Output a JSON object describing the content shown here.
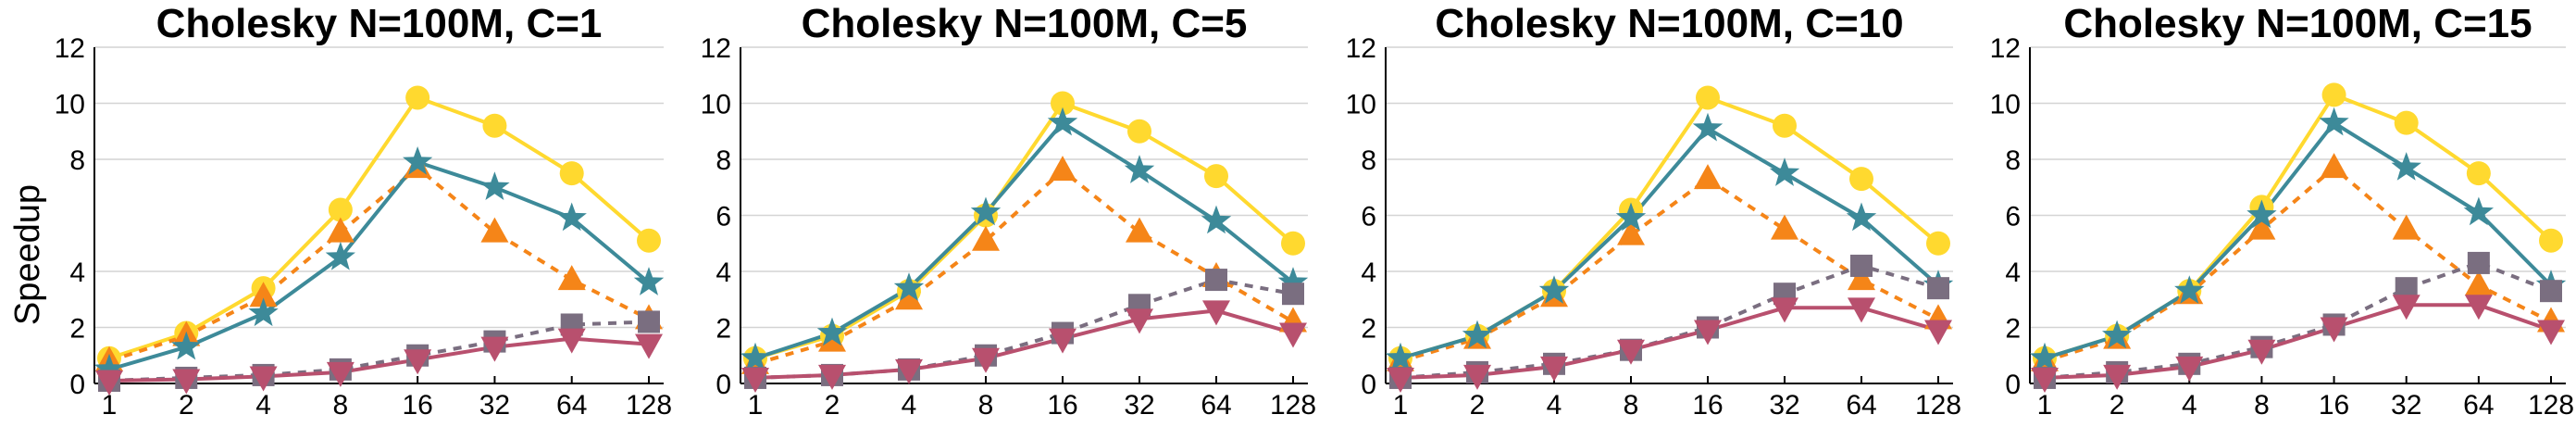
{
  "figure": {
    "ylabel": "Speedup"
  },
  "chart_data": [
    {
      "type": "line",
      "title": "Cholesky N=100M, C=1",
      "xlabel": "",
      "ylabel": "Speedup",
      "x": [
        "1",
        "2",
        "4",
        "8",
        "16",
        "32",
        "64",
        "128"
      ],
      "ylim": [
        0,
        12
      ],
      "yticks": [
        "0",
        "2",
        "4",
        "8",
        "10",
        "12"
      ],
      "grid": true,
      "legend": "none",
      "series": [
        {
          "color": "#FFD92F",
          "dashed": false,
          "marker": "circle",
          "values": [
            0.9,
            1.8,
            3.4,
            6.2,
            10.2,
            9.2,
            7.5,
            5.1
          ]
        },
        {
          "color": "#F58518",
          "dashed": true,
          "marker": "triangle-up",
          "values": [
            0.8,
            1.7,
            3.1,
            5.4,
            7.7,
            5.4,
            3.7,
            2.3
          ]
        },
        {
          "color": "#3D8A99",
          "dashed": false,
          "marker": "star",
          "values": [
            0.5,
            1.3,
            2.5,
            4.5,
            7.9,
            7.0,
            5.9,
            3.6
          ]
        },
        {
          "color": "#7A6E80",
          "dashed": true,
          "marker": "square",
          "values": [
            0.1,
            0.2,
            0.3,
            0.5,
            1.0,
            1.5,
            2.1,
            2.2
          ]
        },
        {
          "color": "#B8506E",
          "dashed": false,
          "marker": "triangle-down",
          "values": [
            0.1,
            0.15,
            0.25,
            0.4,
            0.85,
            1.3,
            1.6,
            1.4
          ]
        }
      ]
    },
    {
      "type": "line",
      "title": "Cholesky N=100M, C=5",
      "xlabel": "",
      "ylabel": "",
      "x": [
        "1",
        "2",
        "4",
        "8",
        "16",
        "32",
        "64",
        "128"
      ],
      "ylim": [
        0,
        12
      ],
      "yticks": [
        "0",
        "2",
        "4",
        "6",
        "8",
        "10",
        "12"
      ],
      "grid": true,
      "legend": "none",
      "series": [
        {
          "color": "#FFD92F",
          "dashed": false,
          "marker": "circle",
          "values": [
            0.9,
            1.7,
            3.3,
            6.0,
            10.0,
            9.0,
            7.4,
            5.0
          ]
        },
        {
          "color": "#F58518",
          "dashed": true,
          "marker": "triangle-up",
          "values": [
            0.7,
            1.5,
            3.0,
            5.1,
            7.6,
            5.4,
            3.8,
            2.2
          ]
        },
        {
          "color": "#3D8A99",
          "dashed": false,
          "marker": "star",
          "values": [
            0.9,
            1.8,
            3.4,
            6.1,
            9.3,
            7.6,
            5.8,
            3.6
          ]
        },
        {
          "color": "#7A6E80",
          "dashed": true,
          "marker": "square",
          "values": [
            0.2,
            0.3,
            0.5,
            1.0,
            1.8,
            2.8,
            3.7,
            3.2
          ]
        },
        {
          "color": "#B8506E",
          "dashed": false,
          "marker": "triangle-down",
          "values": [
            0.2,
            0.3,
            0.5,
            0.9,
            1.6,
            2.3,
            2.6,
            1.8
          ]
        }
      ]
    },
    {
      "type": "line",
      "title": "Cholesky N=100M, C=10",
      "xlabel": "",
      "ylabel": "",
      "x": [
        "1",
        "2",
        "4",
        "8",
        "16",
        "32",
        "64",
        "128"
      ],
      "ylim": [
        0,
        12
      ],
      "yticks": [
        "0",
        "2",
        "4",
        "6",
        "8",
        "10",
        "12"
      ],
      "grid": true,
      "legend": "none",
      "series": [
        {
          "color": "#FFD92F",
          "dashed": false,
          "marker": "circle",
          "values": [
            0.9,
            1.7,
            3.3,
            6.2,
            10.2,
            9.2,
            7.3,
            5.0
          ]
        },
        {
          "color": "#F58518",
          "dashed": true,
          "marker": "triangle-up",
          "values": [
            0.8,
            1.6,
            3.1,
            5.3,
            7.3,
            5.5,
            3.7,
            2.3
          ]
        },
        {
          "color": "#3D8A99",
          "dashed": false,
          "marker": "star",
          "values": [
            0.9,
            1.7,
            3.3,
            5.9,
            9.1,
            7.5,
            5.9,
            3.5
          ]
        },
        {
          "color": "#7A6E80",
          "dashed": true,
          "marker": "square",
          "values": [
            0.2,
            0.4,
            0.7,
            1.2,
            2.0,
            3.2,
            4.2,
            3.4
          ]
        },
        {
          "color": "#B8506E",
          "dashed": false,
          "marker": "triangle-down",
          "values": [
            0.2,
            0.3,
            0.6,
            1.2,
            1.9,
            2.7,
            2.7,
            1.9
          ]
        }
      ]
    },
    {
      "type": "line",
      "title": "Cholesky N=100M, C=15",
      "xlabel": "",
      "ylabel": "",
      "x": [
        "1",
        "2",
        "4",
        "8",
        "16",
        "32",
        "64",
        "128"
      ],
      "ylim": [
        0,
        12
      ],
      "yticks": [
        "0",
        "2",
        "4",
        "6",
        "8",
        "10",
        "12"
      ],
      "grid": true,
      "legend": "none",
      "series": [
        {
          "color": "#FFD92F",
          "dashed": false,
          "marker": "circle",
          "values": [
            0.9,
            1.7,
            3.3,
            6.3,
            10.3,
            9.3,
            7.5,
            5.1
          ]
        },
        {
          "color": "#F58518",
          "dashed": true,
          "marker": "triangle-up",
          "values": [
            0.8,
            1.6,
            3.2,
            5.5,
            7.7,
            5.5,
            3.5,
            2.2
          ]
        },
        {
          "color": "#3D8A99",
          "dashed": false,
          "marker": "star",
          "values": [
            0.9,
            1.7,
            3.3,
            6.0,
            9.3,
            7.7,
            6.1,
            3.5
          ]
        },
        {
          "color": "#7A6E80",
          "dashed": true,
          "marker": "square",
          "values": [
            0.2,
            0.4,
            0.7,
            1.3,
            2.1,
            3.4,
            4.3,
            3.3
          ]
        },
        {
          "color": "#B8506E",
          "dashed": false,
          "marker": "triangle-down",
          "values": [
            0.2,
            0.3,
            0.6,
            1.2,
            2.0,
            2.8,
            2.8,
            1.9
          ]
        }
      ]
    }
  ]
}
